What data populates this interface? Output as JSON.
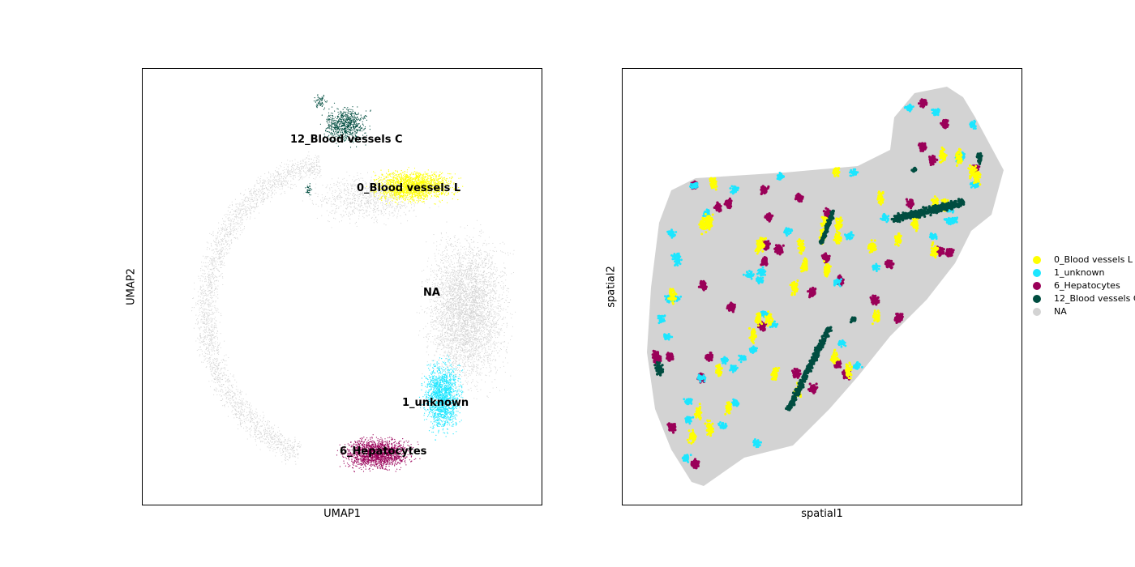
{
  "chart_data": [
    {
      "type": "scatter",
      "title": "",
      "xlabel": "UMAP1",
      "ylabel": "UMAP2",
      "ticks": "none",
      "cluster_labels": [
        "12_Blood vessels C",
        "0_Blood vessels L",
        "NA",
        "1_unknown",
        "6_Hepatocytes"
      ],
      "series": [
        {
          "name": "NA",
          "color": "#d3d3d3"
        },
        {
          "name": "0_Blood vessels L",
          "color": "#ffff00"
        },
        {
          "name": "12_Blood vessels C",
          "color": "#004d40"
        },
        {
          "name": "1_unknown",
          "color": "#1ce6ff"
        },
        {
          "name": "6_Hepatocytes",
          "color": "#9a0059"
        }
      ]
    },
    {
      "type": "scatter",
      "title": "",
      "xlabel": "spatial1",
      "ylabel": "spatial2",
      "ticks": "none",
      "legend_position": "right",
      "series": [
        {
          "name": "NA",
          "color": "#d3d3d3"
        },
        {
          "name": "0_Blood vessels L",
          "color": "#ffff00"
        },
        {
          "name": "1_unknown",
          "color": "#1ce6ff"
        },
        {
          "name": "6_Hepatocytes",
          "color": "#9a0059"
        },
        {
          "name": "12_Blood vessels C",
          "color": "#004d40"
        }
      ]
    }
  ],
  "legend": {
    "items": [
      {
        "label": "0_Blood vessels L",
        "color": "#ffff00"
      },
      {
        "label": "1_unknown",
        "color": "#1ce6ff"
      },
      {
        "label": "6_Hepatocytes",
        "color": "#9a0059"
      },
      {
        "label": "12_Blood vessels C",
        "color": "#004d40"
      },
      {
        "label": "NA",
        "color": "#d3d3d3"
      }
    ]
  }
}
